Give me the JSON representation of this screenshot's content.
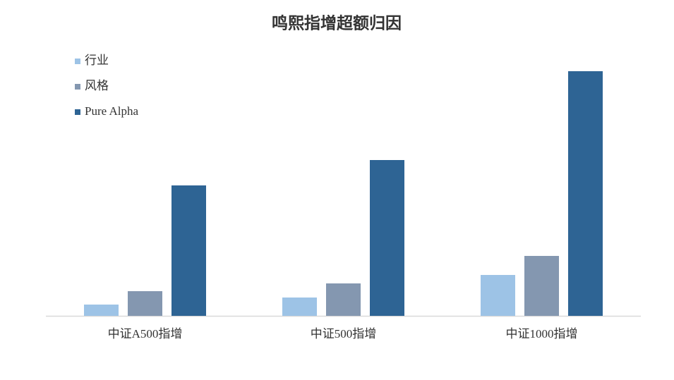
{
  "chart_data": {
    "type": "bar",
    "title": "鸣熙指增超额归因",
    "categories": [
      "中证A500指增",
      "中证500指增",
      "中证1000指增"
    ],
    "series": [
      {
        "name": "行业",
        "color": "#9dc3e6",
        "values": [
          16,
          26,
          58
        ]
      },
      {
        "name": "风格",
        "color": "#8497b0",
        "values": [
          35,
          46,
          85
        ]
      },
      {
        "name": "Pure Alpha",
        "color": "#2e6494",
        "values": [
          185,
          221,
          347
        ]
      }
    ],
    "ylim": [
      0,
      350
    ],
    "legend": "upper-left"
  }
}
